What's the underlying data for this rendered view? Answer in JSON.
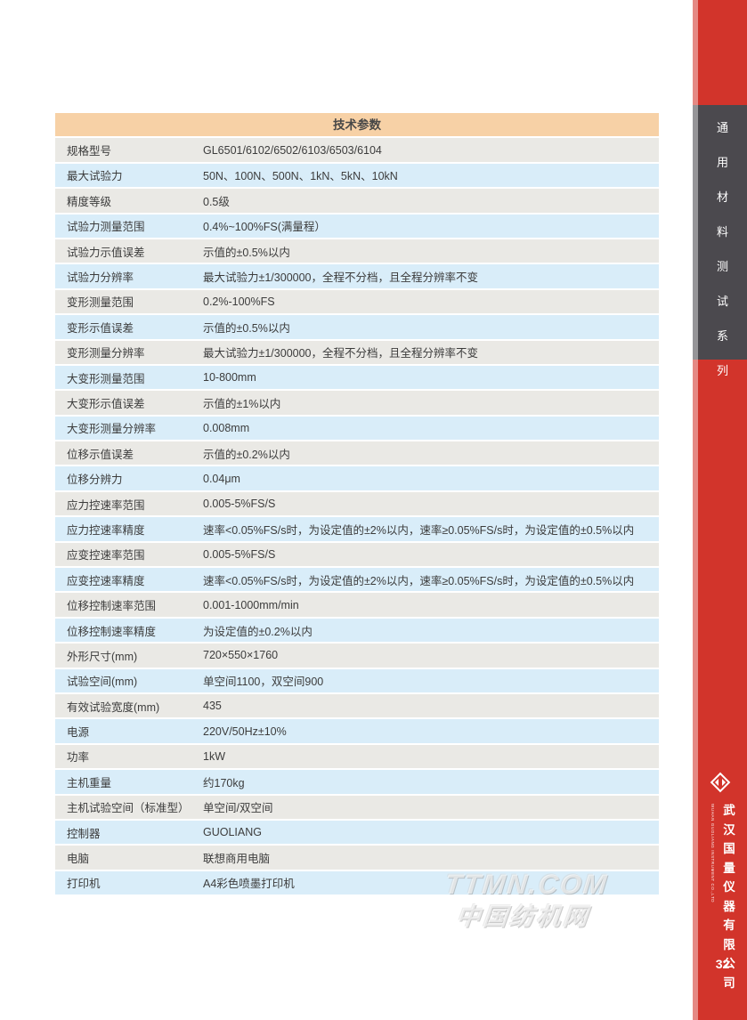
{
  "page": {
    "number": "32"
  },
  "table": {
    "title": "技术参数",
    "rows": [
      {
        "label": "规格型号",
        "value": "GL6501/6102/6502/6103/6503/6104"
      },
      {
        "label": "最大试验力",
        "value": "50N、100N、500N、1kN、5kN、10kN"
      },
      {
        "label": "精度等级",
        "value": "0.5级"
      },
      {
        "label": "试验力测量范围",
        "value": "0.4%~100%FS(满量程）"
      },
      {
        "label": "试验力示值误差",
        "value": "示值的±0.5%以内"
      },
      {
        "label": "试验力分辨率",
        "value": "最大试验力±1/300000，全程不分档，且全程分辨率不变"
      },
      {
        "label": "变形测量范围",
        "value": "0.2%-100%FS"
      },
      {
        "label": "变形示值误差",
        "value": "示值的±0.5%以内"
      },
      {
        "label": "变形测量分辨率",
        "value": "最大试验力±1/300000，全程不分档，且全程分辨率不变"
      },
      {
        "label": "大变形测量范围",
        "value": "10-800mm"
      },
      {
        "label": "大变形示值误差",
        "value": "示值的±1%以内"
      },
      {
        "label": "大变形测量分辨率",
        "value": "0.008mm"
      },
      {
        "label": "位移示值误差",
        "value": "示值的±0.2%以内"
      },
      {
        "label": "位移分辨力",
        "value": "0.04μm"
      },
      {
        "label": "应力控速率范围",
        "value": "0.005-5%FS/S"
      },
      {
        "label": "应力控速率精度",
        "value": "速率<0.05%FS/s时，为设定值的±2%以内，速率≥0.05%FS/s时，为设定值的±0.5%以内"
      },
      {
        "label": "应变控速率范围",
        "value": "0.005-5%FS/S"
      },
      {
        "label": "应变控速率精度",
        "value": "速率<0.05%FS/s时，为设定值的±2%以内，速率≥0.05%FS/s时，为设定值的±0.5%以内"
      },
      {
        "label": "位移控制速率范围",
        "value": "0.001-1000mm/min"
      },
      {
        "label": "位移控制速率精度",
        "value": "为设定值的±0.2%以内"
      },
      {
        "label": "外形尺寸(mm)",
        "value": "720×550×1760"
      },
      {
        "label": "试验空间(mm)",
        "value": "单空间1100，双空间900"
      },
      {
        "label": "有效试验宽度(mm)",
        "value": "435"
      },
      {
        "label": "电源",
        "value": "220V/50Hz±10%"
      },
      {
        "label": "功率",
        "value": "1kW"
      },
      {
        "label": "主机重量",
        "value": "约170kg"
      },
      {
        "label": "主机试验空间（标准型）",
        "value": "单空间/双空间"
      },
      {
        "label": "控制器",
        "value": "GUOLIANG"
      },
      {
        "label": "电脑",
        "value": "联想商用电脑"
      },
      {
        "label": "打印机",
        "value": "A4彩色喷墨打印机"
      }
    ]
  },
  "sidebar": {
    "series_chars": [
      "通",
      "用",
      "材",
      "料",
      "测",
      "试",
      "系",
      "列"
    ],
    "company_chars": [
      "武",
      "汉",
      "国",
      "量",
      "仪",
      "器",
      "有",
      "限",
      "公",
      "司"
    ],
    "company_en": "WUHAN GUOLIANG INSTRUMENT CO.,LTD",
    "logo_icon": "diamond-logo"
  },
  "watermark": {
    "line1": "TTMN.COM",
    "line2": "中国纺机网"
  },
  "colors": {
    "header_bg": "#f7d1a6",
    "row_gray": "#eae9e5",
    "row_blue": "#d9edf9",
    "sidebar_red": "#d2342b",
    "series_block_gray": "#4b494e"
  }
}
